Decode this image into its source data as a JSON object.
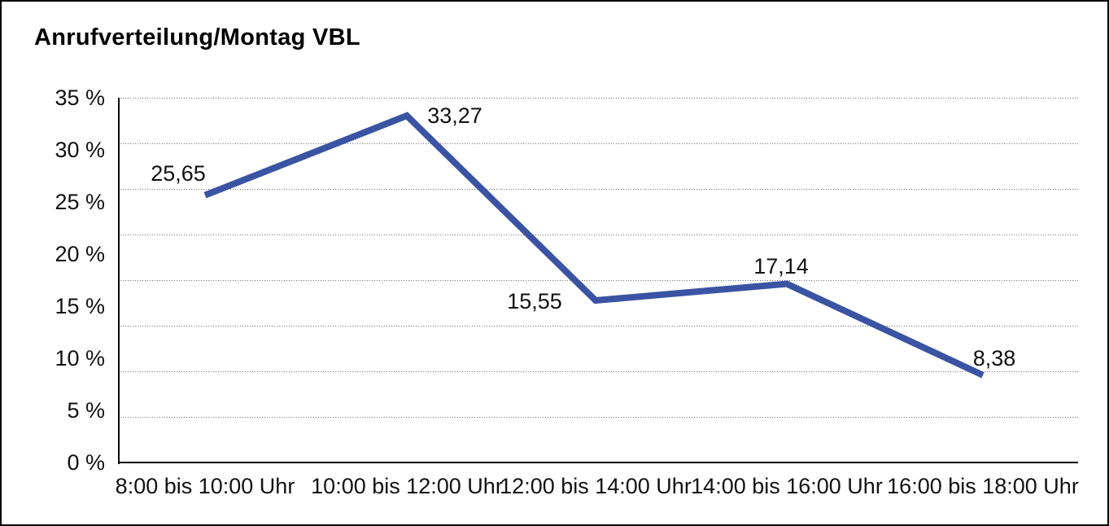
{
  "chart_data": {
    "type": "line",
    "title": "Anrufverteilung/Montag VBL",
    "categories": [
      "8:00 bis 10:00 Uhr",
      "10:00 bis 12:00 Uhr",
      "12:00 bis 14:00 Uhr",
      "14:00 bis 16:00 Uhr",
      "16:00 bis 18:00 Uhr"
    ],
    "values": [
      25.65,
      33.27,
      15.55,
      17.14,
      8.38
    ],
    "value_labels": [
      "25,65",
      "33,27",
      "15,55",
      "17,14",
      "8,38"
    ],
    "y_ticks": [
      "35 %",
      "30 %",
      "25 %",
      "20 %",
      "15 %",
      "10 %",
      "5 %",
      "0 %"
    ],
    "y_tick_values": [
      35,
      30,
      25,
      20,
      15,
      10,
      5,
      0
    ],
    "ylim": [
      0,
      35
    ],
    "xlabel": "",
    "ylabel": "",
    "legend_position": "none",
    "grid": "horizontal dotted",
    "line_color": "#3A54A3",
    "text_color": "#111111",
    "title_color": "#000000"
  }
}
